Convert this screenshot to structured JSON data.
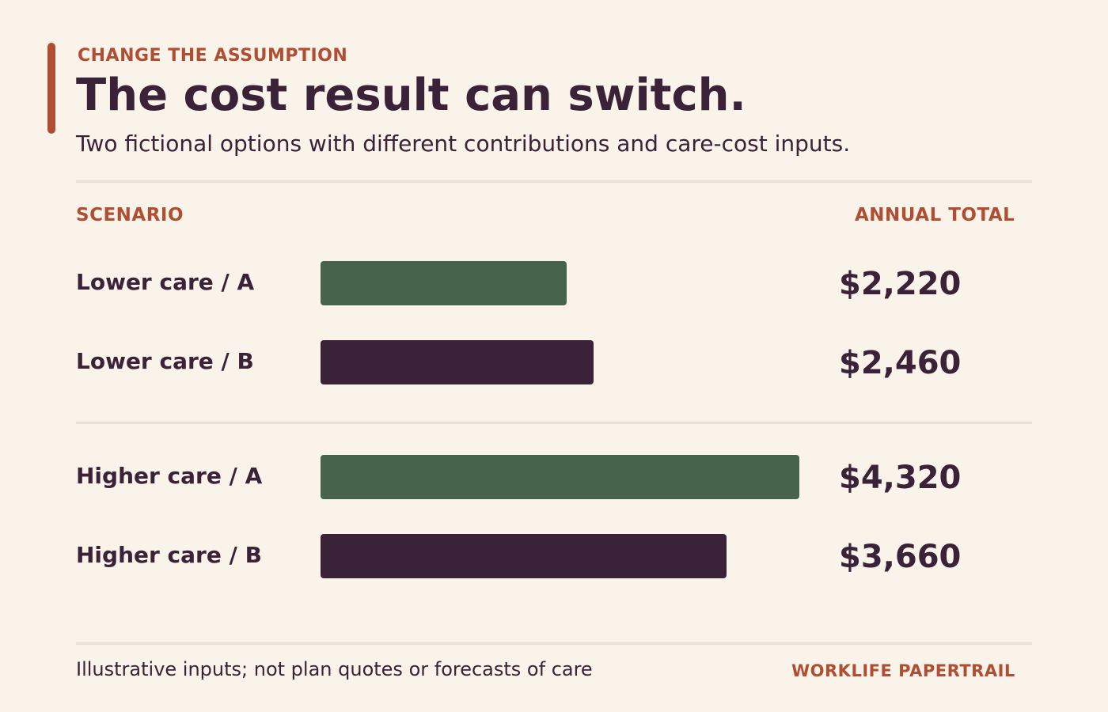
{
  "header": {
    "kicker": "CHANGE THE ASSUMPTION",
    "title": "The cost result can switch.",
    "subtitle": "Two fictional options with different contributions and care-cost inputs."
  },
  "columns": {
    "scenario": "SCENARIO",
    "total": "ANNUAL TOTAL"
  },
  "footer": {
    "note": "Illustrative inputs; not plan quotes or forecasts of care",
    "brand": "WORKLIFE PAPERTRAIL"
  },
  "colors": {
    "accent": "#b04e33",
    "option_a": "#48634c",
    "option_b": "#3a2239",
    "background": "#f9f3e9"
  },
  "chart_data": {
    "type": "bar",
    "orientation": "horizontal",
    "groups": [
      {
        "name": "Lower care",
        "rows": [
          {
            "label": "Lower care / A",
            "option": "A",
            "value": 2220,
            "value_label": "$2,220"
          },
          {
            "label": "Lower care / B",
            "option": "B",
            "value": 2460,
            "value_label": "$2,460"
          }
        ]
      },
      {
        "name": "Higher care",
        "rows": [
          {
            "label": "Higher care / A",
            "option": "A",
            "value": 4320,
            "value_label": "$4,320"
          },
          {
            "label": "Higher care / B",
            "option": "B",
            "value": 3660,
            "value_label": "$3,660"
          }
        ]
      }
    ],
    "xlim": [
      0,
      4320
    ],
    "grid": false
  }
}
